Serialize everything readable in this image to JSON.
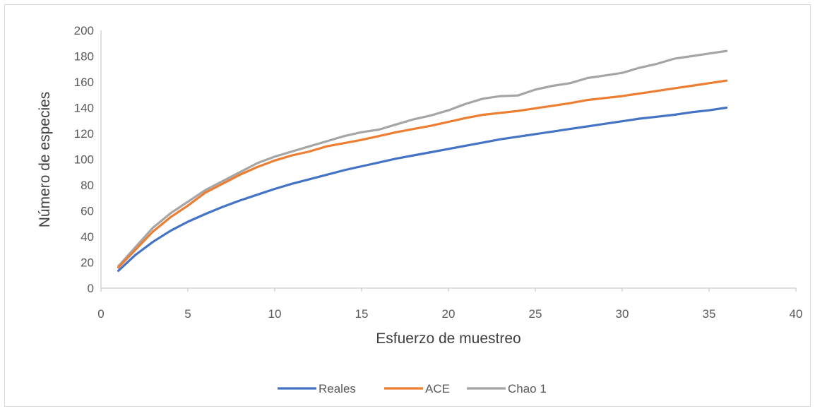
{
  "chart_data": {
    "type": "line",
    "title": "",
    "xlabel": "Esfuerzo de muestreo",
    "ylabel": "Número de especies",
    "xlim": [
      0,
      40
    ],
    "ylim": [
      0,
      200
    ],
    "xticks": [
      0,
      5,
      10,
      15,
      20,
      25,
      30,
      35,
      40
    ],
    "yticks": [
      0,
      20,
      40,
      60,
      80,
      100,
      120,
      140,
      160,
      180,
      200
    ],
    "grid": false,
    "legend_position": "bottom",
    "x": [
      1,
      2,
      3,
      4,
      5,
      6,
      7,
      8,
      9,
      10,
      11,
      12,
      13,
      14,
      15,
      16,
      17,
      18,
      19,
      20,
      21,
      22,
      23,
      24,
      25,
      26,
      27,
      28,
      29,
      30,
      31,
      32,
      33,
      34,
      35,
      36
    ],
    "series": [
      {
        "name": "Reales",
        "color": "#4472C4",
        "values": [
          13.5,
          26,
          36,
          44.5,
          51.5,
          57.5,
          63,
          68,
          72.5,
          77,
          81,
          84.5,
          88,
          91.5,
          94.5,
          97.5,
          100.5,
          103,
          105.5,
          108,
          110.5,
          113,
          115.5,
          117.5,
          119.5,
          121.5,
          123.5,
          125.5,
          127.5,
          129.5,
          131.5,
          133,
          134.5,
          136.5,
          138,
          140
        ]
      },
      {
        "name": "ACE",
        "color": "#ED7D31",
        "values": [
          16,
          30,
          44,
          55,
          64,
          74,
          81,
          88,
          94,
          99,
          103,
          106,
          110,
          112.5,
          115,
          118,
          121,
          123.5,
          126,
          129,
          132,
          134.5,
          136,
          137.5,
          139.5,
          141.5,
          143.5,
          146,
          147.5,
          149,
          151,
          153,
          155,
          157,
          159,
          161
        ]
      },
      {
        "name": "Chao 1",
        "color": "#A5A5A5",
        "values": [
          17,
          32,
          47,
          58,
          67,
          76,
          83,
          90,
          97,
          102,
          106,
          110,
          114,
          118,
          121,
          123,
          127,
          131,
          134,
          138,
          143,
          147,
          149,
          149.5,
          154,
          157,
          159,
          163,
          165,
          167,
          171,
          174,
          178,
          180,
          182,
          184
        ]
      }
    ]
  }
}
